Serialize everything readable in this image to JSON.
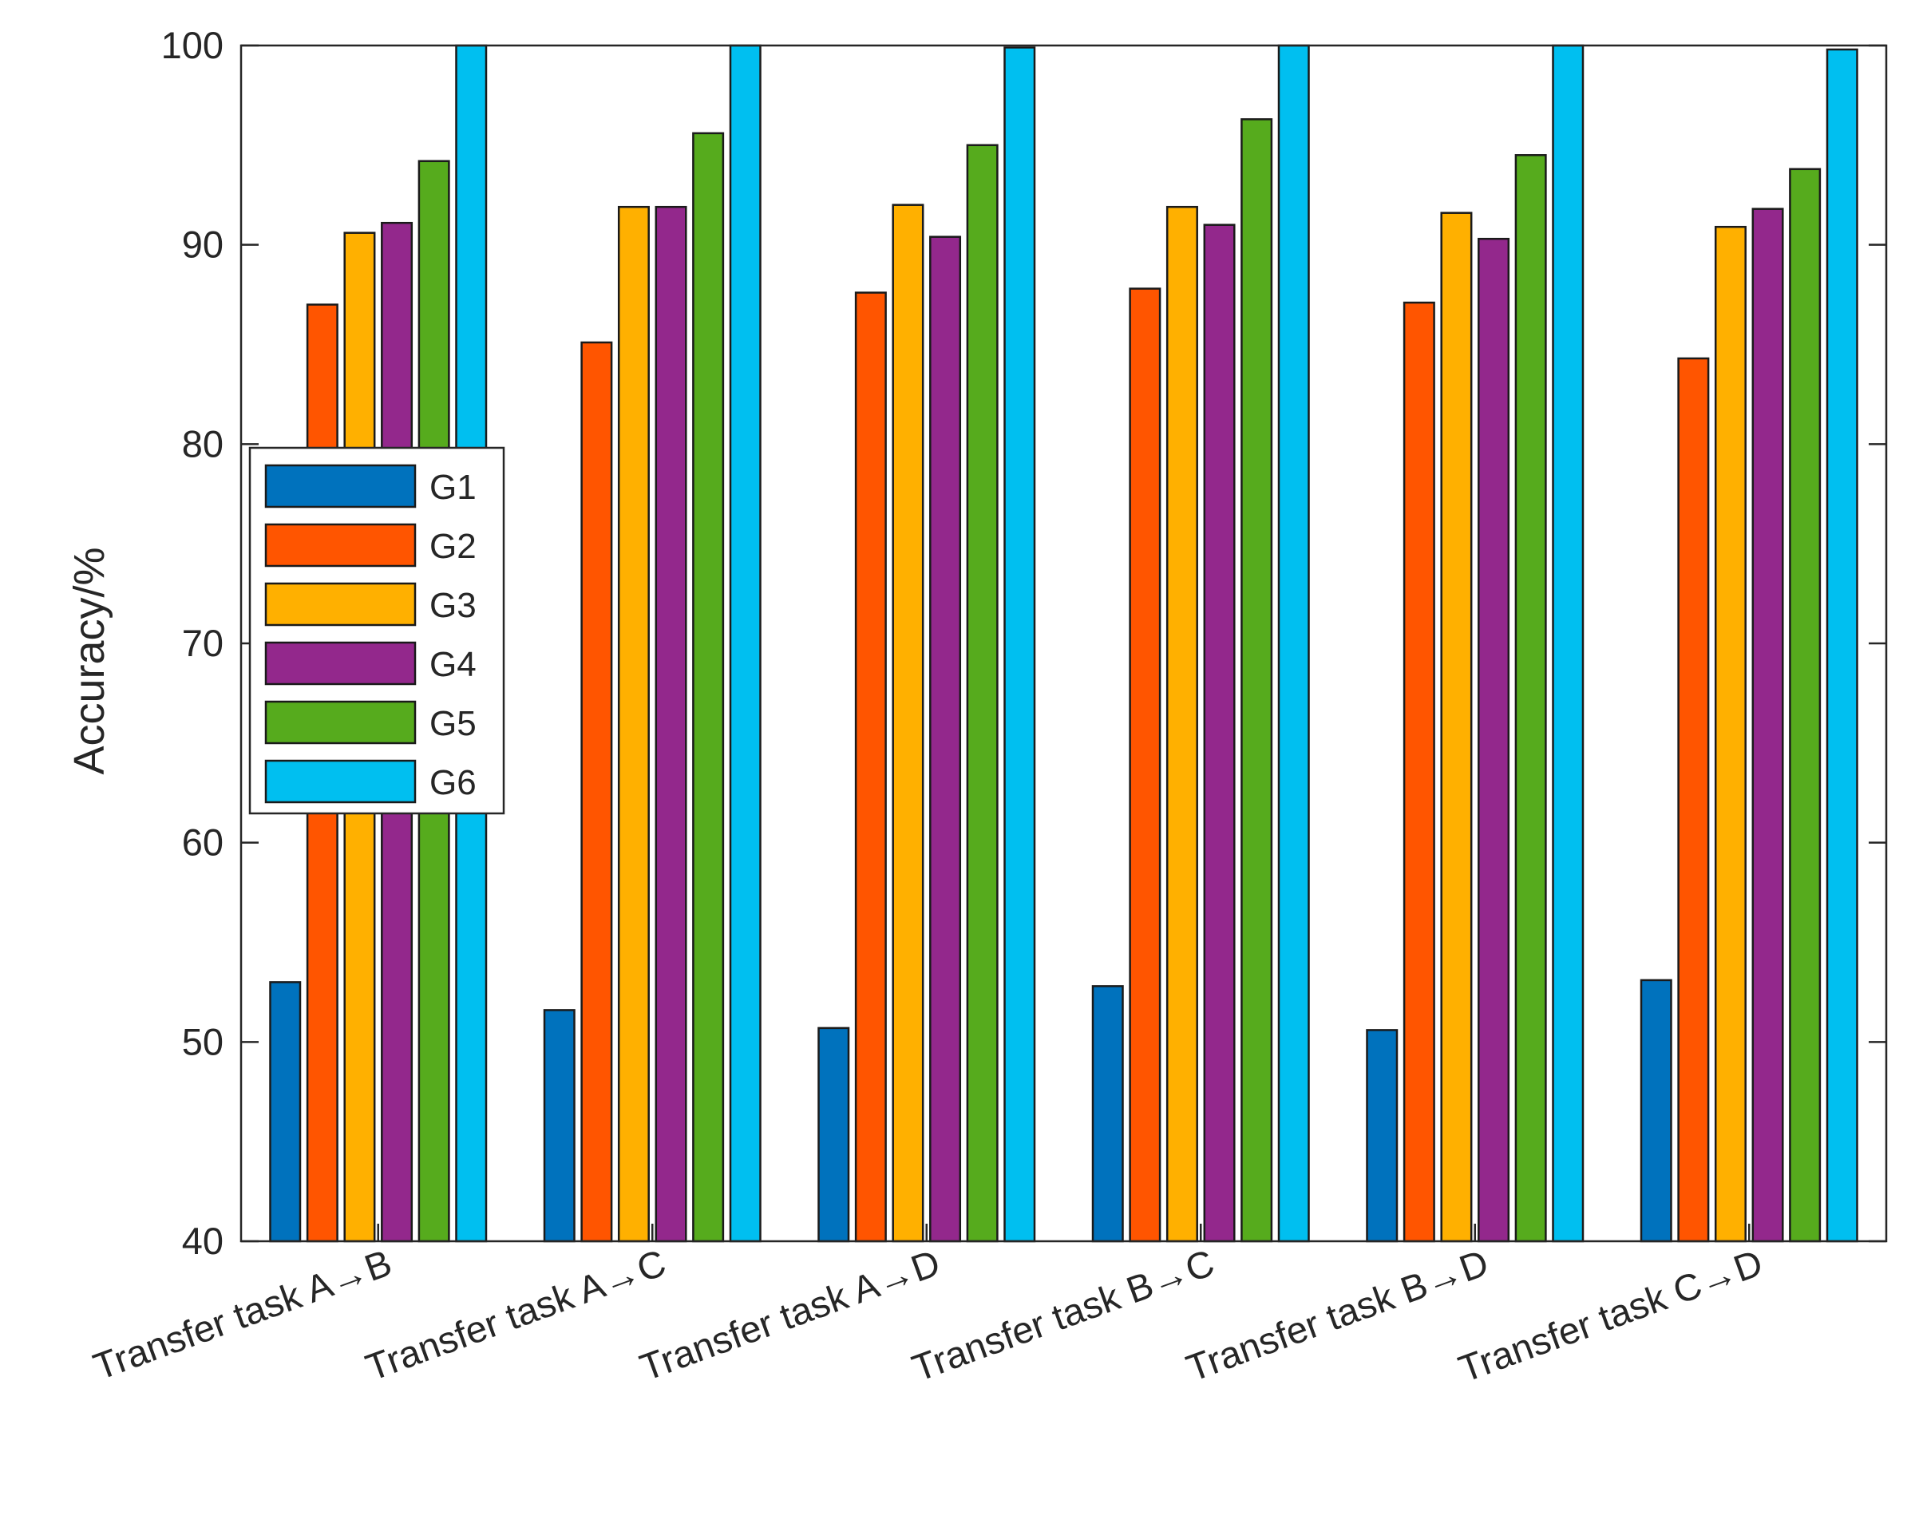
{
  "chart_data": {
    "type": "bar",
    "title": "",
    "xlabel": "",
    "ylabel": "Accuracy/%",
    "ylim": [
      40,
      100
    ],
    "yticks": [
      40,
      50,
      60,
      70,
      80,
      90,
      100
    ],
    "grid": false,
    "legend_position": "left-middle",
    "categories": [
      "Transfer task A→B",
      "Transfer task A→C",
      "Transfer task A→D",
      "Transfer task B→C",
      "Transfer task B→D",
      "Transfer task C→D"
    ],
    "series": [
      {
        "name": "G1",
        "color": "#0072BD",
        "values": [
          53.0,
          51.6,
          50.7,
          52.8,
          50.6,
          53.1
        ]
      },
      {
        "name": "G2",
        "color": "#FF5500",
        "values": [
          87.0,
          85.1,
          87.6,
          87.8,
          87.1,
          84.3
        ]
      },
      {
        "name": "G3",
        "color": "#FFB000",
        "values": [
          90.6,
          91.9,
          92.0,
          91.9,
          91.6,
          90.9
        ]
      },
      {
        "name": "G4",
        "color": "#93288C",
        "values": [
          91.1,
          91.9,
          90.4,
          91.0,
          90.3,
          91.8
        ]
      },
      {
        "name": "G5",
        "color": "#56AB1D",
        "values": [
          94.2,
          95.6,
          95.0,
          96.3,
          94.5,
          93.8
        ]
      },
      {
        "name": "G6",
        "color": "#00BFF0",
        "values": [
          100.0,
          100.0,
          99.9,
          100.0,
          100.0,
          99.8
        ]
      }
    ]
  }
}
